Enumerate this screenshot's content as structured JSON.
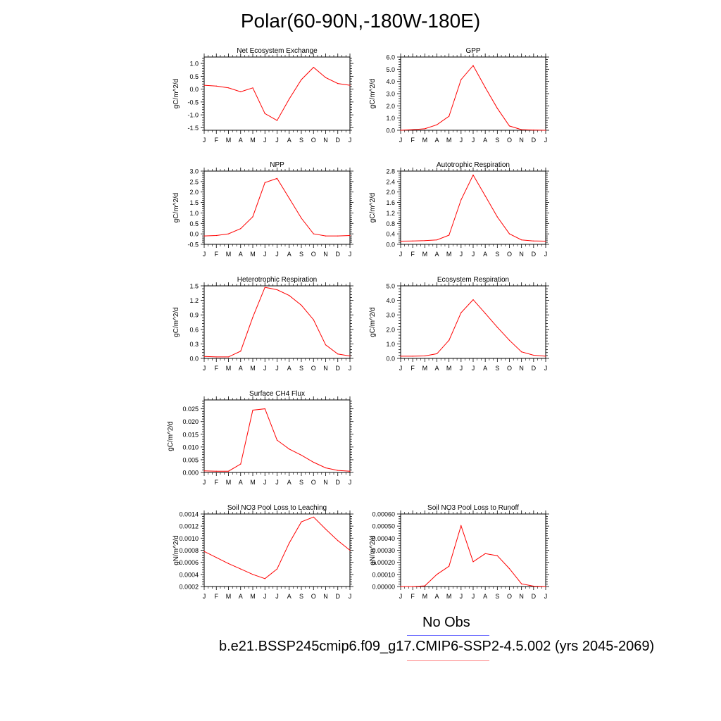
{
  "title": "Polar(60-90N,-180W-180E)",
  "colors": {
    "series": "#ff0000",
    "legend_obs_line": "#6f6fff",
    "legend_model_line": "#ff8080",
    "axis": "#000000"
  },
  "legend": {
    "obs_label": "No Obs",
    "model_label": "b.e21.BSSP245cmip6.f09_g17.CMIP6-SSP2-4.5.002 (yrs 2045-2069)"
  },
  "chart_data": [
    {
      "type": "line",
      "title": "Net Ecosystem Exchange",
      "ylabel": "gC/m^2/d",
      "categories": [
        "J",
        "F",
        "M",
        "A",
        "M",
        "J",
        "J",
        "A",
        "S",
        "O",
        "N",
        "D",
        "J"
      ],
      "ylim": [
        -1.6,
        1.25
      ],
      "yticks": [
        -1.5,
        -1.0,
        -0.5,
        0.0,
        0.5,
        1.0
      ],
      "ytick_labels": [
        "-1.5",
        "-1.0",
        "-0.5",
        "0.0",
        "0.5",
        "1.0"
      ],
      "values": [
        0.15,
        0.12,
        0.05,
        -0.1,
        0.05,
        -0.95,
        -1.22,
        -0.38,
        0.37,
        0.85,
        0.45,
        0.22,
        0.15
      ]
    },
    {
      "type": "line",
      "title": "GPP",
      "ylabel": "gC/m^2/d",
      "categories": [
        "J",
        "F",
        "M",
        "A",
        "M",
        "J",
        "J",
        "A",
        "S",
        "O",
        "N",
        "D",
        "J"
      ],
      "ylim": [
        0,
        6.0
      ],
      "yticks": [
        0,
        1,
        2,
        3,
        4,
        5,
        6
      ],
      "ytick_labels": [
        "0.0",
        "1.0",
        "2.0",
        "3.0",
        "4.0",
        "5.0",
        "6.0"
      ],
      "values": [
        0.0,
        0.05,
        0.12,
        0.45,
        1.15,
        4.15,
        5.3,
        3.5,
        1.8,
        0.35,
        0.05,
        0.02,
        0.0
      ]
    },
    {
      "type": "line",
      "title": "NPP",
      "ylabel": "gC/m^2/d",
      "categories": [
        "J",
        "F",
        "M",
        "A",
        "M",
        "J",
        "J",
        "A",
        "S",
        "O",
        "N",
        "D",
        "J"
      ],
      "ylim": [
        -0.5,
        3.0
      ],
      "yticks": [
        -0.5,
        0,
        0.5,
        1.0,
        1.5,
        2.0,
        2.5,
        3.0
      ],
      "ytick_labels": [
        "-0.5",
        "0.0",
        "0.5",
        "1.0",
        "1.5",
        "2.0",
        "2.5",
        "3.0"
      ],
      "values": [
        -0.1,
        -0.08,
        0.0,
        0.25,
        0.82,
        2.45,
        2.65,
        1.7,
        0.75,
        0.0,
        -0.1,
        -0.1,
        -0.08
      ]
    },
    {
      "type": "line",
      "title": "Autotrophic Respiration",
      "ylabel": "gC/m^2/d",
      "categories": [
        "J",
        "F",
        "M",
        "A",
        "M",
        "J",
        "J",
        "A",
        "S",
        "O",
        "N",
        "D",
        "J"
      ],
      "ylim": [
        0,
        2.8
      ],
      "yticks": [
        0,
        0.4,
        0.8,
        1.2,
        1.6,
        2.0,
        2.4,
        2.8
      ],
      "ytick_labels": [
        "0.0",
        "0.4",
        "0.8",
        "1.2",
        "1.6",
        "2.0",
        "2.4",
        "2.8"
      ],
      "values": [
        0.12,
        0.13,
        0.14,
        0.17,
        0.35,
        1.7,
        2.65,
        1.85,
        1.05,
        0.4,
        0.17,
        0.13,
        0.12
      ]
    },
    {
      "type": "line",
      "title": "Heterotrophic Respiration",
      "ylabel": "gC/m^2/d",
      "categories": [
        "J",
        "F",
        "M",
        "A",
        "M",
        "J",
        "J",
        "A",
        "S",
        "O",
        "N",
        "D",
        "J"
      ],
      "ylim": [
        0,
        1.5
      ],
      "yticks": [
        0,
        0.3,
        0.6,
        0.9,
        1.2,
        1.5
      ],
      "ytick_labels": [
        "0.0",
        "0.3",
        "0.6",
        "0.9",
        "1.2",
        "1.5"
      ],
      "values": [
        0.04,
        0.03,
        0.03,
        0.15,
        0.85,
        1.47,
        1.42,
        1.3,
        1.1,
        0.8,
        0.28,
        0.09,
        0.05
      ]
    },
    {
      "type": "line",
      "title": "Ecosystem Respiration",
      "ylabel": "gC/m^2/d",
      "categories": [
        "J",
        "F",
        "M",
        "A",
        "M",
        "J",
        "J",
        "A",
        "S",
        "O",
        "N",
        "D",
        "J"
      ],
      "ylim": [
        0,
        5.0
      ],
      "yticks": [
        0,
        1,
        2,
        3,
        4,
        5
      ],
      "ytick_labels": [
        "0.0",
        "1.0",
        "2.0",
        "3.0",
        "4.0",
        "5.0"
      ],
      "values": [
        0.15,
        0.15,
        0.17,
        0.32,
        1.25,
        3.15,
        4.05,
        3.1,
        2.15,
        1.25,
        0.45,
        0.22,
        0.15
      ]
    },
    {
      "type": "line",
      "title": "Surface CH4 Flux",
      "ylabel": "gC/m^2/d",
      "categories": [
        "J",
        "F",
        "M",
        "A",
        "M",
        "J",
        "J",
        "A",
        "S",
        "O",
        "N",
        "D",
        "J"
      ],
      "ylim": [
        0,
        0.0285
      ],
      "yticks": [
        0,
        0.005,
        0.01,
        0.015,
        0.02,
        0.025
      ],
      "ytick_labels": [
        "0.000",
        "0.005",
        "0.010",
        "0.015",
        "0.020",
        "0.025"
      ],
      "values": [
        0.0006,
        0.0005,
        0.0005,
        0.0033,
        0.0245,
        0.025,
        0.0127,
        0.0092,
        0.0068,
        0.004,
        0.0018,
        0.0008,
        0.0005
      ]
    },
    {
      "type": "line",
      "title": "Soil NO3 Pool Loss to Leaching",
      "ylabel": "gN/m^2/d",
      "categories": [
        "J",
        "F",
        "M",
        "A",
        "M",
        "J",
        "J",
        "A",
        "S",
        "O",
        "N",
        "D",
        "J"
      ],
      "ylim": [
        0.0002,
        0.0014
      ],
      "yticks": [
        0.0002,
        0.0004,
        0.0006,
        0.0008,
        0.001,
        0.0012,
        0.0014
      ],
      "ytick_labels": [
        "0.0002",
        "0.0004",
        "0.0006",
        "0.0008",
        "0.0010",
        "0.0012",
        "0.0014"
      ],
      "values": [
        0.00078,
        0.00068,
        0.00058,
        0.00049,
        0.0004,
        0.00033,
        0.00049,
        0.00092,
        0.00127,
        0.00135,
        0.00115,
        0.00096,
        0.0008
      ]
    },
    {
      "type": "line",
      "title": "Soil NO3 Pool Loss to Runoff",
      "ylabel": "gN/m^2/d",
      "categories": [
        "J",
        "F",
        "M",
        "A",
        "M",
        "J",
        "J",
        "A",
        "S",
        "O",
        "N",
        "D",
        "J"
      ],
      "ylim": [
        0,
        0.0006
      ],
      "yticks": [
        0,
        0.0001,
        0.0002,
        0.0003,
        0.0004,
        0.0005,
        0.0006
      ],
      "ytick_labels": [
        "0.00000",
        "0.00010",
        "0.00020",
        "0.00030",
        "0.00040",
        "0.00050",
        "0.00060"
      ],
      "values": [
        0.0,
        0.0,
        5e-06,
        0.0001,
        0.000168,
        0.000503,
        0.000205,
        0.000272,
        0.000255,
        0.000148,
        2.2e-05,
        3e-06,
        0.0
      ]
    }
  ]
}
